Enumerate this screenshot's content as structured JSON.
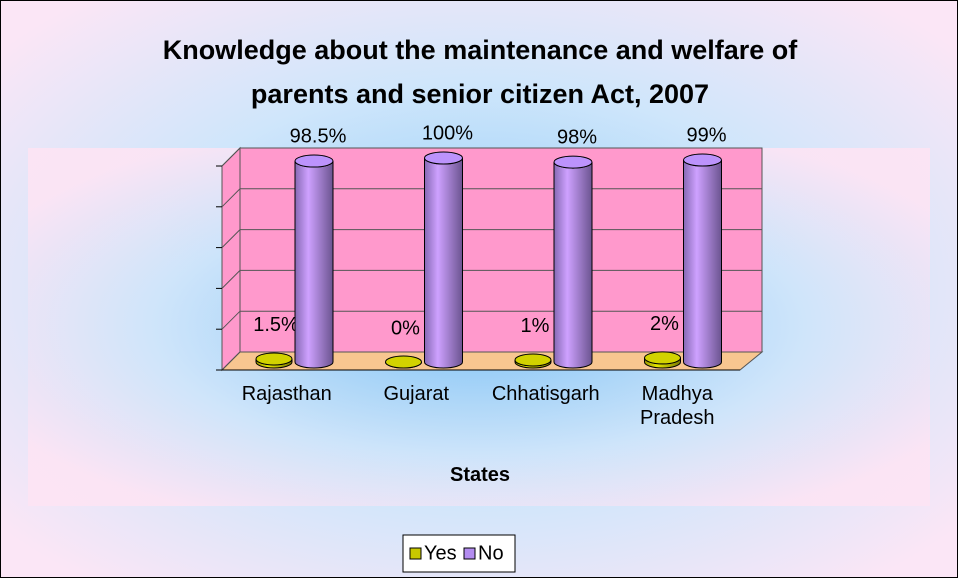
{
  "chart_data": {
    "type": "bar3d",
    "title": "Knowledge about the maintenance and welfare of parents and senior citizen Act, 2007",
    "categories": [
      "Rajasthan",
      "Gujarat",
      "Chhatisgarh",
      "Madhya Pradesh"
    ],
    "series": [
      {
        "name": "Yes",
        "color": "#c8c800",
        "values": [
          1.5,
          0,
          1,
          2
        ],
        "value_labels": [
          "1.5%",
          "0%",
          "1%",
          "2%"
        ]
      },
      {
        "name": "No",
        "color": "#b38cf0",
        "values": [
          98.5,
          100,
          98,
          99
        ],
        "value_labels": [
          "98.5%",
          "100%",
          "98%",
          "99%"
        ]
      }
    ],
    "x_label": "States",
    "ylim": [
      0,
      100
    ],
    "yticks": [
      0,
      20,
      40,
      60,
      80,
      100
    ],
    "grid": true,
    "legend": "bottom"
  }
}
